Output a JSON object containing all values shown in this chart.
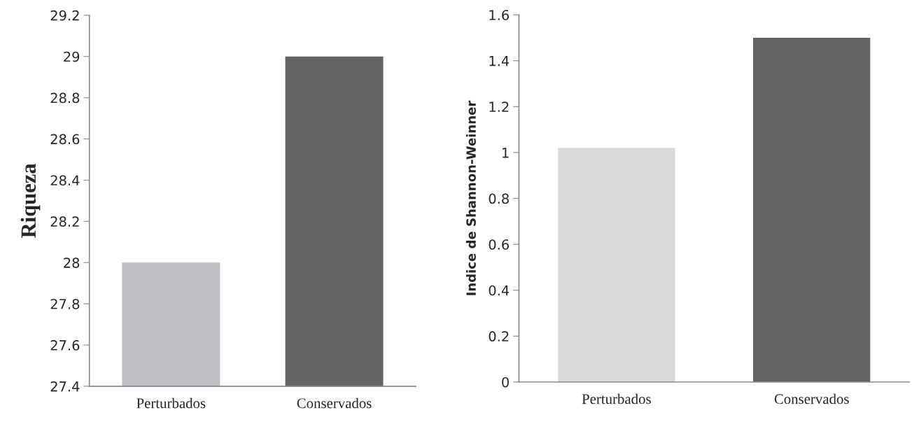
{
  "chart_data": [
    {
      "type": "bar",
      "ylabel": "Riqueza",
      "categories": [
        "Perturbados",
        "Conservados"
      ],
      "values": [
        28,
        29
      ],
      "colors": [
        "#bfbfc3",
        "#636365"
      ],
      "ylim": [
        27.4,
        29.2
      ],
      "yticks": [
        27.4,
        27.6,
        27.8,
        28,
        28.2,
        28.4,
        28.6,
        28.8,
        29,
        29.2
      ]
    },
    {
      "type": "bar",
      "ylabel": "Indice de Shannon-Weinner",
      "categories": [
        "Perturbados",
        "Conservados"
      ],
      "values": [
        1.02,
        1.5
      ],
      "colors": [
        "#d9dadc",
        "#636365"
      ],
      "ylim": [
        0,
        1.6
      ],
      "yticks": [
        0,
        0.2,
        0.4,
        0.6,
        0.8,
        1,
        1.2,
        1.4,
        1.6
      ]
    }
  ]
}
